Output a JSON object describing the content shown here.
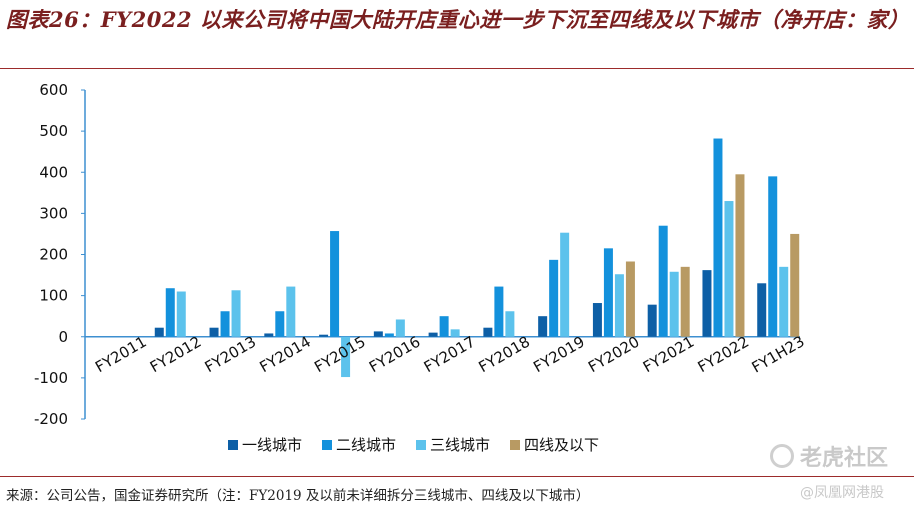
{
  "page": {
    "title": "图表26：FY2022 以来公司将中国大陆开店重心进一步下沉至四线及以下城市（净开店：家）",
    "source": "来源：公司公告，国金证券研究所（注：FY2019 及以前未详细拆分三线城市、四线及以下城市）",
    "watermark_main": "老虎社区",
    "watermark_sub": "@凤凰网港股"
  },
  "chart_data": {
    "type": "bar",
    "categories": [
      "FY2011",
      "FY2012",
      "FY2013",
      "FY2014",
      "FY2015",
      "FY2016",
      "FY2017",
      "FY2018",
      "FY2019",
      "FY2020",
      "FY2021",
      "FY2022",
      "FY1H23"
    ],
    "series": [
      {
        "name": "一线城市",
        "color": "#0d5fa6",
        "values": [
          0,
          22,
          22,
          8,
          5,
          13,
          10,
          22,
          50,
          82,
          78,
          162,
          130
        ]
      },
      {
        "name": "二线城市",
        "color": "#1391dc",
        "values": [
          0,
          118,
          62,
          62,
          257,
          8,
          50,
          122,
          187,
          215,
          270,
          482,
          390
        ]
      },
      {
        "name": "三线城市",
        "color": "#5cc2ec",
        "values": [
          0,
          110,
          113,
          122,
          -98,
          42,
          18,
          62,
          253,
          152,
          158,
          330,
          170
        ]
      },
      {
        "name": "四线及以下",
        "color": "#b89a63",
        "values": [
          null,
          null,
          null,
          null,
          null,
          null,
          null,
          null,
          null,
          183,
          170,
          395,
          250
        ]
      }
    ],
    "ylim": [
      -200,
      600
    ],
    "yticks": [
      -200,
      -100,
      0,
      100,
      200,
      300,
      400,
      500,
      600
    ],
    "ytick_labels": [
      "-200",
      "-100",
      "0",
      "100",
      "200",
      "300",
      "400",
      "500",
      "600"
    ],
    "title": "",
    "xlabel": "",
    "ylabel": "",
    "grid": false,
    "legend_position": "bottom"
  }
}
